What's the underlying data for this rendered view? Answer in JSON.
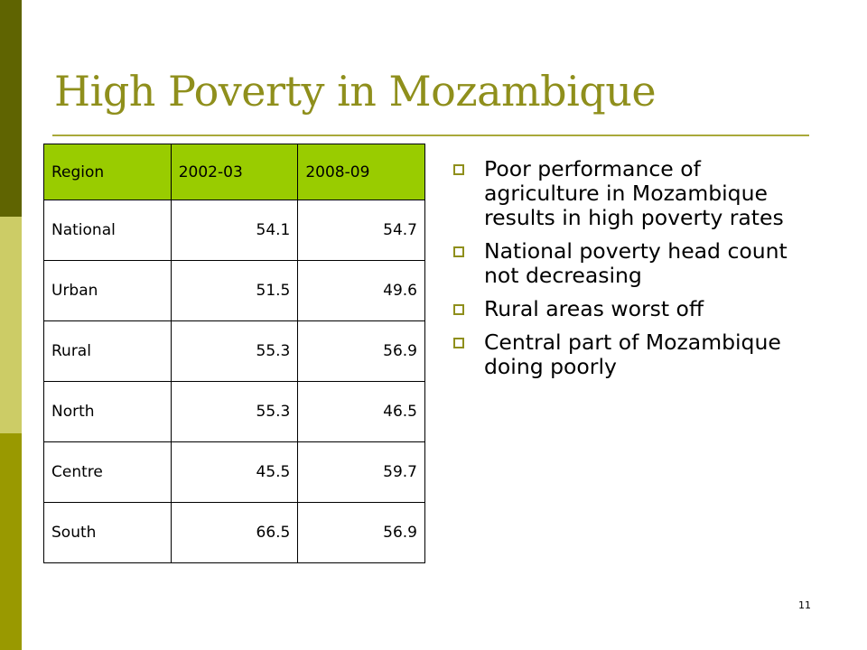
{
  "slide": {
    "title": "High Poverty in Mozambique",
    "page_number": "11"
  },
  "table": {
    "headers": [
      "Region",
      "2002-03",
      "2008-09"
    ],
    "rows": [
      [
        "National",
        "54.1",
        "54.7"
      ],
      [
        "Urban",
        "51.5",
        "49.6"
      ],
      [
        "Rural",
        "55.3",
        "56.9"
      ],
      [
        "North",
        "55.3",
        "46.5"
      ],
      [
        "Centre",
        "45.5",
        "59.7"
      ],
      [
        "South",
        "66.5",
        "56.9"
      ]
    ]
  },
  "bullets": [
    "Poor performance of agriculture in Mozambique results in high poverty rates",
    "National poverty head count not decreasing",
    "Rural areas worst off",
    "Central part of Mozambique doing poorly"
  ],
  "colors": {
    "title": "#8f8f1c",
    "header_fill": "#99cc00",
    "bullet": "#8f8f1c",
    "sidebar_dark": "#5f6401",
    "sidebar_light": "#cccc66",
    "sidebar_mid": "#999900"
  },
  "icons": {
    "bullet": "hollow-square-bullet-icon"
  }
}
